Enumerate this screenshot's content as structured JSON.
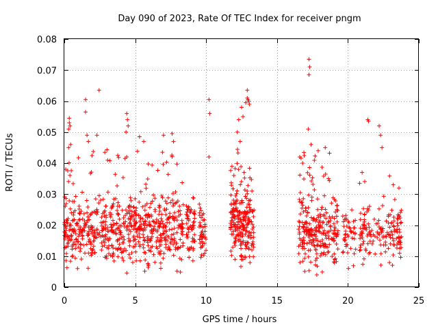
{
  "colors": {
    "points": "#ff0000",
    "grid": "#a0a0a0",
    "frame": "#000000"
  },
  "chart_data": {
    "type": "scatter",
    "marker": "plus",
    "title": "Day 090 of 2023, Rate Of TEC Index for receiver pngm",
    "xlabel": "GPS time / hours",
    "ylabel": "ROTI / TECUs",
    "xlim": [
      0,
      25
    ],
    "ylim": [
      0,
      0.08
    ],
    "xticks": [
      0,
      5,
      10,
      15,
      20,
      25
    ],
    "xtick_labels": [
      "0",
      "5",
      "10",
      "15",
      "20",
      "25"
    ],
    "yticks": [
      0,
      0.01,
      0.02,
      0.03,
      0.04,
      0.05,
      0.06,
      0.07,
      0.08
    ],
    "ytick_labels": [
      "0",
      "0.01",
      "0.02",
      "0.03",
      "0.04",
      "0.05",
      "0.06",
      "0.07",
      "0.08"
    ],
    "grid": true,
    "series": [
      {
        "name": "ROTI",
        "clusters": [
          {
            "x": [
              0.0,
              8.4
            ],
            "core": [
              0.007,
              0.03
            ],
            "spread": [
              0.004,
              0.045
            ],
            "count": 700
          },
          {
            "x": [
              8.6,
              9.2
            ],
            "core": [
              0.009,
              0.028
            ],
            "spread": [
              0.008,
              0.029
            ],
            "count": 60
          },
          {
            "x": [
              9.5,
              10.0
            ],
            "core": [
              0.009,
              0.026
            ],
            "spread": [
              0.008,
              0.028
            ],
            "count": 45
          },
          {
            "x": [
              11.7,
              13.4
            ],
            "core": [
              0.007,
              0.034
            ],
            "spread": [
              0.005,
              0.046
            ],
            "count": 230
          },
          {
            "x": [
              16.5,
              19.3
            ],
            "core": [
              0.006,
              0.03
            ],
            "spread": [
              0.003,
              0.045
            ],
            "count": 260
          },
          {
            "x": [
              19.6,
              20.6
            ],
            "core": [
              0.009,
              0.024
            ],
            "spread": [
              0.005,
              0.028
            ],
            "count": 45
          },
          {
            "x": [
              20.8,
              23.8
            ],
            "core": [
              0.008,
              0.027
            ],
            "spread": [
              0.006,
              0.036
            ],
            "count": 160
          }
        ],
        "highlights": [
          [
            0.35,
            0.0545
          ],
          [
            0.35,
            0.053
          ],
          [
            0.3,
            0.051
          ],
          [
            0.4,
            0.052
          ],
          [
            0.3,
            0.045
          ],
          [
            0.45,
            0.046
          ],
          [
            1.5,
            0.0605
          ],
          [
            1.5,
            0.0565
          ],
          [
            1.6,
            0.049
          ],
          [
            1.7,
            0.047
          ],
          [
            2.45,
            0.0635
          ],
          [
            2.3,
            0.049
          ],
          [
            4.4,
            0.056
          ],
          [
            4.45,
            0.054
          ],
          [
            4.5,
            0.052
          ],
          [
            4.35,
            0.05
          ],
          [
            5.3,
            0.0485
          ],
          [
            5.6,
            0.047
          ],
          [
            7.0,
            0.049
          ],
          [
            7.6,
            0.0495
          ],
          [
            7.7,
            0.047
          ],
          [
            10.2,
            0.0605
          ],
          [
            10.25,
            0.056
          ],
          [
            10.2,
            0.042
          ],
          [
            12.5,
            0.058
          ],
          [
            12.9,
            0.0635
          ],
          [
            12.9,
            0.061
          ],
          [
            13.0,
            0.06
          ],
          [
            12.8,
            0.0595
          ],
          [
            12.95,
            0.0605
          ],
          [
            13.05,
            0.059
          ],
          [
            12.6,
            0.055
          ],
          [
            12.3,
            0.054
          ],
          [
            12.2,
            0.05
          ],
          [
            12.4,
            0.047
          ],
          [
            17.25,
            0.0735
          ],
          [
            17.3,
            0.071
          ],
          [
            17.25,
            0.0685
          ],
          [
            17.2,
            0.051
          ],
          [
            16.6,
            0.042
          ],
          [
            17.4,
            0.046
          ],
          [
            17.9,
            0.044
          ],
          [
            18.4,
            0.045
          ],
          [
            21.4,
            0.054
          ],
          [
            21.45,
            0.0535
          ],
          [
            22.2,
            0.052
          ],
          [
            22.3,
            0.049
          ],
          [
            22.4,
            0.045
          ],
          [
            21.0,
            0.037
          ],
          [
            23.2,
            0.033
          ],
          [
            23.6,
            0.032
          ],
          [
            23.7,
            0.016
          ]
        ]
      }
    ]
  }
}
